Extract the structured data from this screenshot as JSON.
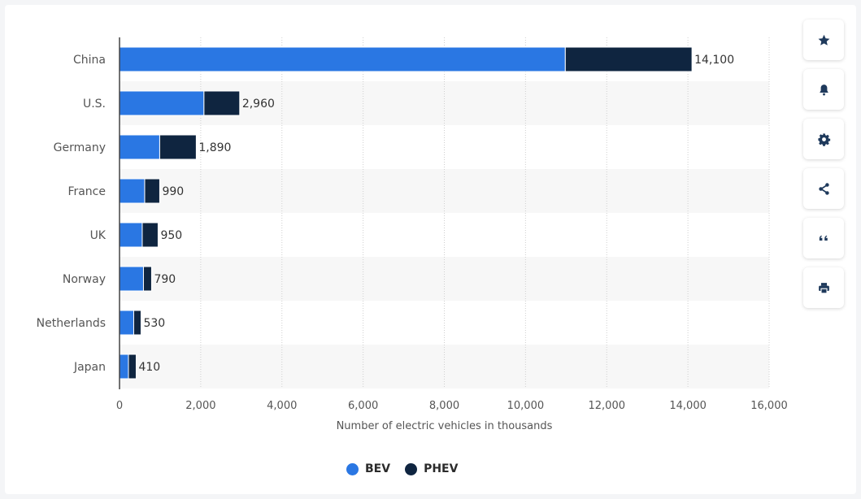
{
  "colors": {
    "bev": "#2a77e3",
    "phev": "#0f2540",
    "axis_text": "#555555",
    "grid": "#cfcfcf",
    "band": "#f7f7f7"
  },
  "toolbar": {
    "icons": [
      "star-icon",
      "bell-icon",
      "gear-icon",
      "share-icon",
      "quote-icon",
      "print-icon"
    ]
  },
  "chart_data": {
    "type": "bar",
    "orientation": "horizontal",
    "stacked": true,
    "categories": [
      "China",
      "U.S.",
      "Germany",
      "France",
      "UK",
      "Norway",
      "Netherlands",
      "Japan"
    ],
    "series": [
      {
        "name": "BEV",
        "values": [
          10980,
          2080,
          990,
          620,
          560,
          590,
          350,
          220
        ]
      },
      {
        "name": "PHEV",
        "values": [
          3120,
          880,
          900,
          370,
          390,
          200,
          180,
          190
        ]
      }
    ],
    "totals": [
      14100,
      2960,
      1890,
      990,
      950,
      790,
      530,
      410
    ],
    "total_labels": [
      "14,100",
      "2,960",
      "1,890",
      "990",
      "950",
      "790",
      "530",
      "410"
    ],
    "xlabel": "Number of electric vehicles in thousands",
    "xlim": [
      0,
      16000
    ],
    "xticks": [
      0,
      2000,
      4000,
      6000,
      8000,
      10000,
      12000,
      14000,
      16000
    ],
    "xtick_labels": [
      "0",
      "2,000",
      "4,000",
      "6,000",
      "8,000",
      "10,000",
      "12,000",
      "14,000",
      "16,000"
    ],
    "grid": true,
    "legend": "bottom"
  }
}
